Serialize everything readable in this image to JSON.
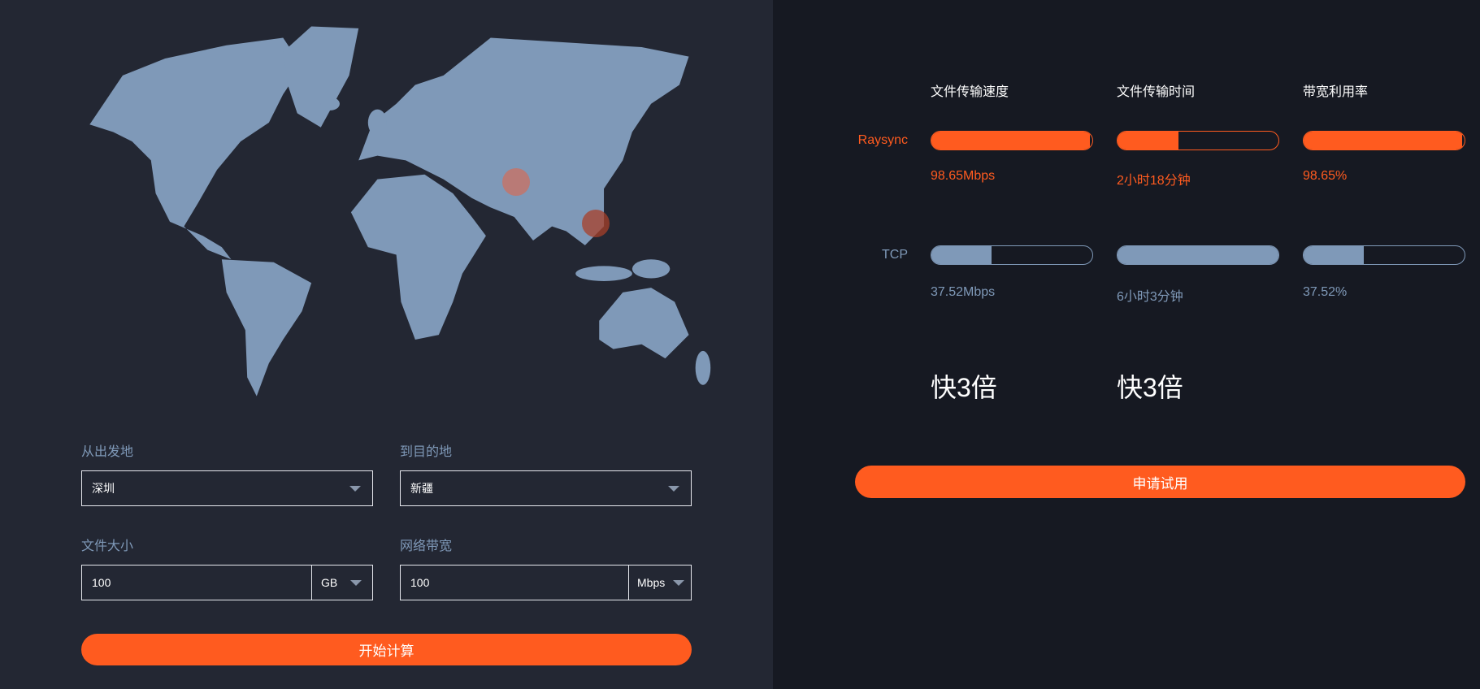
{
  "colors": {
    "accent": "#ff5b1f",
    "tcp": "#7f99b8",
    "left_bg": "#232733",
    "right_bg": "#161922",
    "map": "#7f99b8"
  },
  "map": {
    "markers": [
      "origin-marker",
      "destination-marker"
    ]
  },
  "form": {
    "origin": {
      "label": "从出发地",
      "value": "深圳"
    },
    "destination": {
      "label": "到目的地",
      "value": "新疆"
    },
    "file_size": {
      "label": "文件大小",
      "value": "100",
      "unit": "GB"
    },
    "bandwidth": {
      "label": "网络带宽",
      "value": "100",
      "unit": "Mbps"
    },
    "calculate_label": "开始计算"
  },
  "results": {
    "headers": [
      "文件传输速度",
      "文件传输时间",
      "带宽利用率"
    ],
    "raysync": {
      "label": "Raysync",
      "values": [
        "98.65Mbps",
        "2小时18分钟",
        "98.65%"
      ],
      "fills": [
        0.9865,
        0.38,
        0.9865
      ]
    },
    "tcp": {
      "label": "TCP",
      "values": [
        "37.52Mbps",
        "6小时3分钟",
        "37.52%"
      ],
      "fills": [
        0.3752,
        1.0,
        0.3752
      ]
    },
    "speedup": [
      "快3倍",
      "快3倍"
    ],
    "trial_label": "申请试用"
  }
}
